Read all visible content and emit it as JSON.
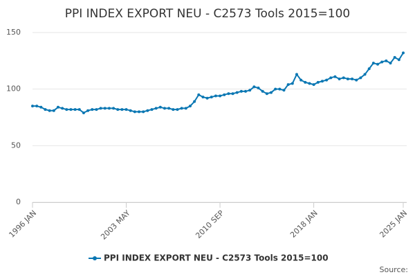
{
  "chart_data": {
    "type": "line",
    "title": "PPI INDEX EXPORT NEU - C2573 Tools 2015=100",
    "categories": [
      "1996 JAN",
      null,
      null,
      null,
      null,
      null,
      null,
      null,
      null,
      null,
      null,
      null,
      null,
      null,
      null,
      null,
      null,
      null,
      null,
      null,
      null,
      null,
      "2003 MAY",
      null,
      null,
      null,
      null,
      null,
      null,
      null,
      null,
      null,
      null,
      null,
      null,
      null,
      null,
      null,
      null,
      null,
      null,
      null,
      null,
      null,
      "2010 SEP",
      null,
      null,
      null,
      null,
      null,
      null,
      null,
      null,
      null,
      null,
      null,
      null,
      null,
      null,
      null,
      null,
      null,
      null,
      null,
      null,
      null,
      "2018 JAN",
      null,
      null,
      null,
      null,
      null,
      null,
      null,
      null,
      null,
      null,
      null,
      null,
      null,
      null,
      null,
      null,
      null,
      null,
      null,
      null,
      "2025 JAN"
    ],
    "series": [
      {
        "name": "PPI INDEX EXPORT NEU - C2573 Tools 2015=100",
        "color": "#0a77b3",
        "values": [
          85,
          85,
          84,
          82,
          81,
          81,
          84,
          83,
          82,
          82,
          82,
          82,
          79,
          81,
          82,
          82,
          83,
          83,
          83,
          83,
          82,
          82,
          82,
          81,
          80,
          80,
          80,
          81,
          82,
          83,
          84,
          83,
          83,
          82,
          82,
          83,
          83,
          85,
          89,
          95,
          93,
          92,
          93,
          94,
          94,
          95,
          96,
          96,
          97,
          98,
          98,
          99,
          102,
          101,
          98,
          96,
          97,
          100,
          100,
          99,
          104,
          105,
          113,
          108,
          106,
          105,
          104,
          106,
          107,
          108,
          110,
          111,
          109,
          110,
          109,
          109,
          108,
          110,
          113,
          118,
          123,
          122,
          124,
          125,
          123,
          128,
          126,
          132
        ]
      }
    ],
    "ylim": [
      0,
      150
    ],
    "yticks": [
      0,
      50,
      100,
      150
    ],
    "grid": true,
    "legend": "bottom",
    "source": "Source:"
  }
}
